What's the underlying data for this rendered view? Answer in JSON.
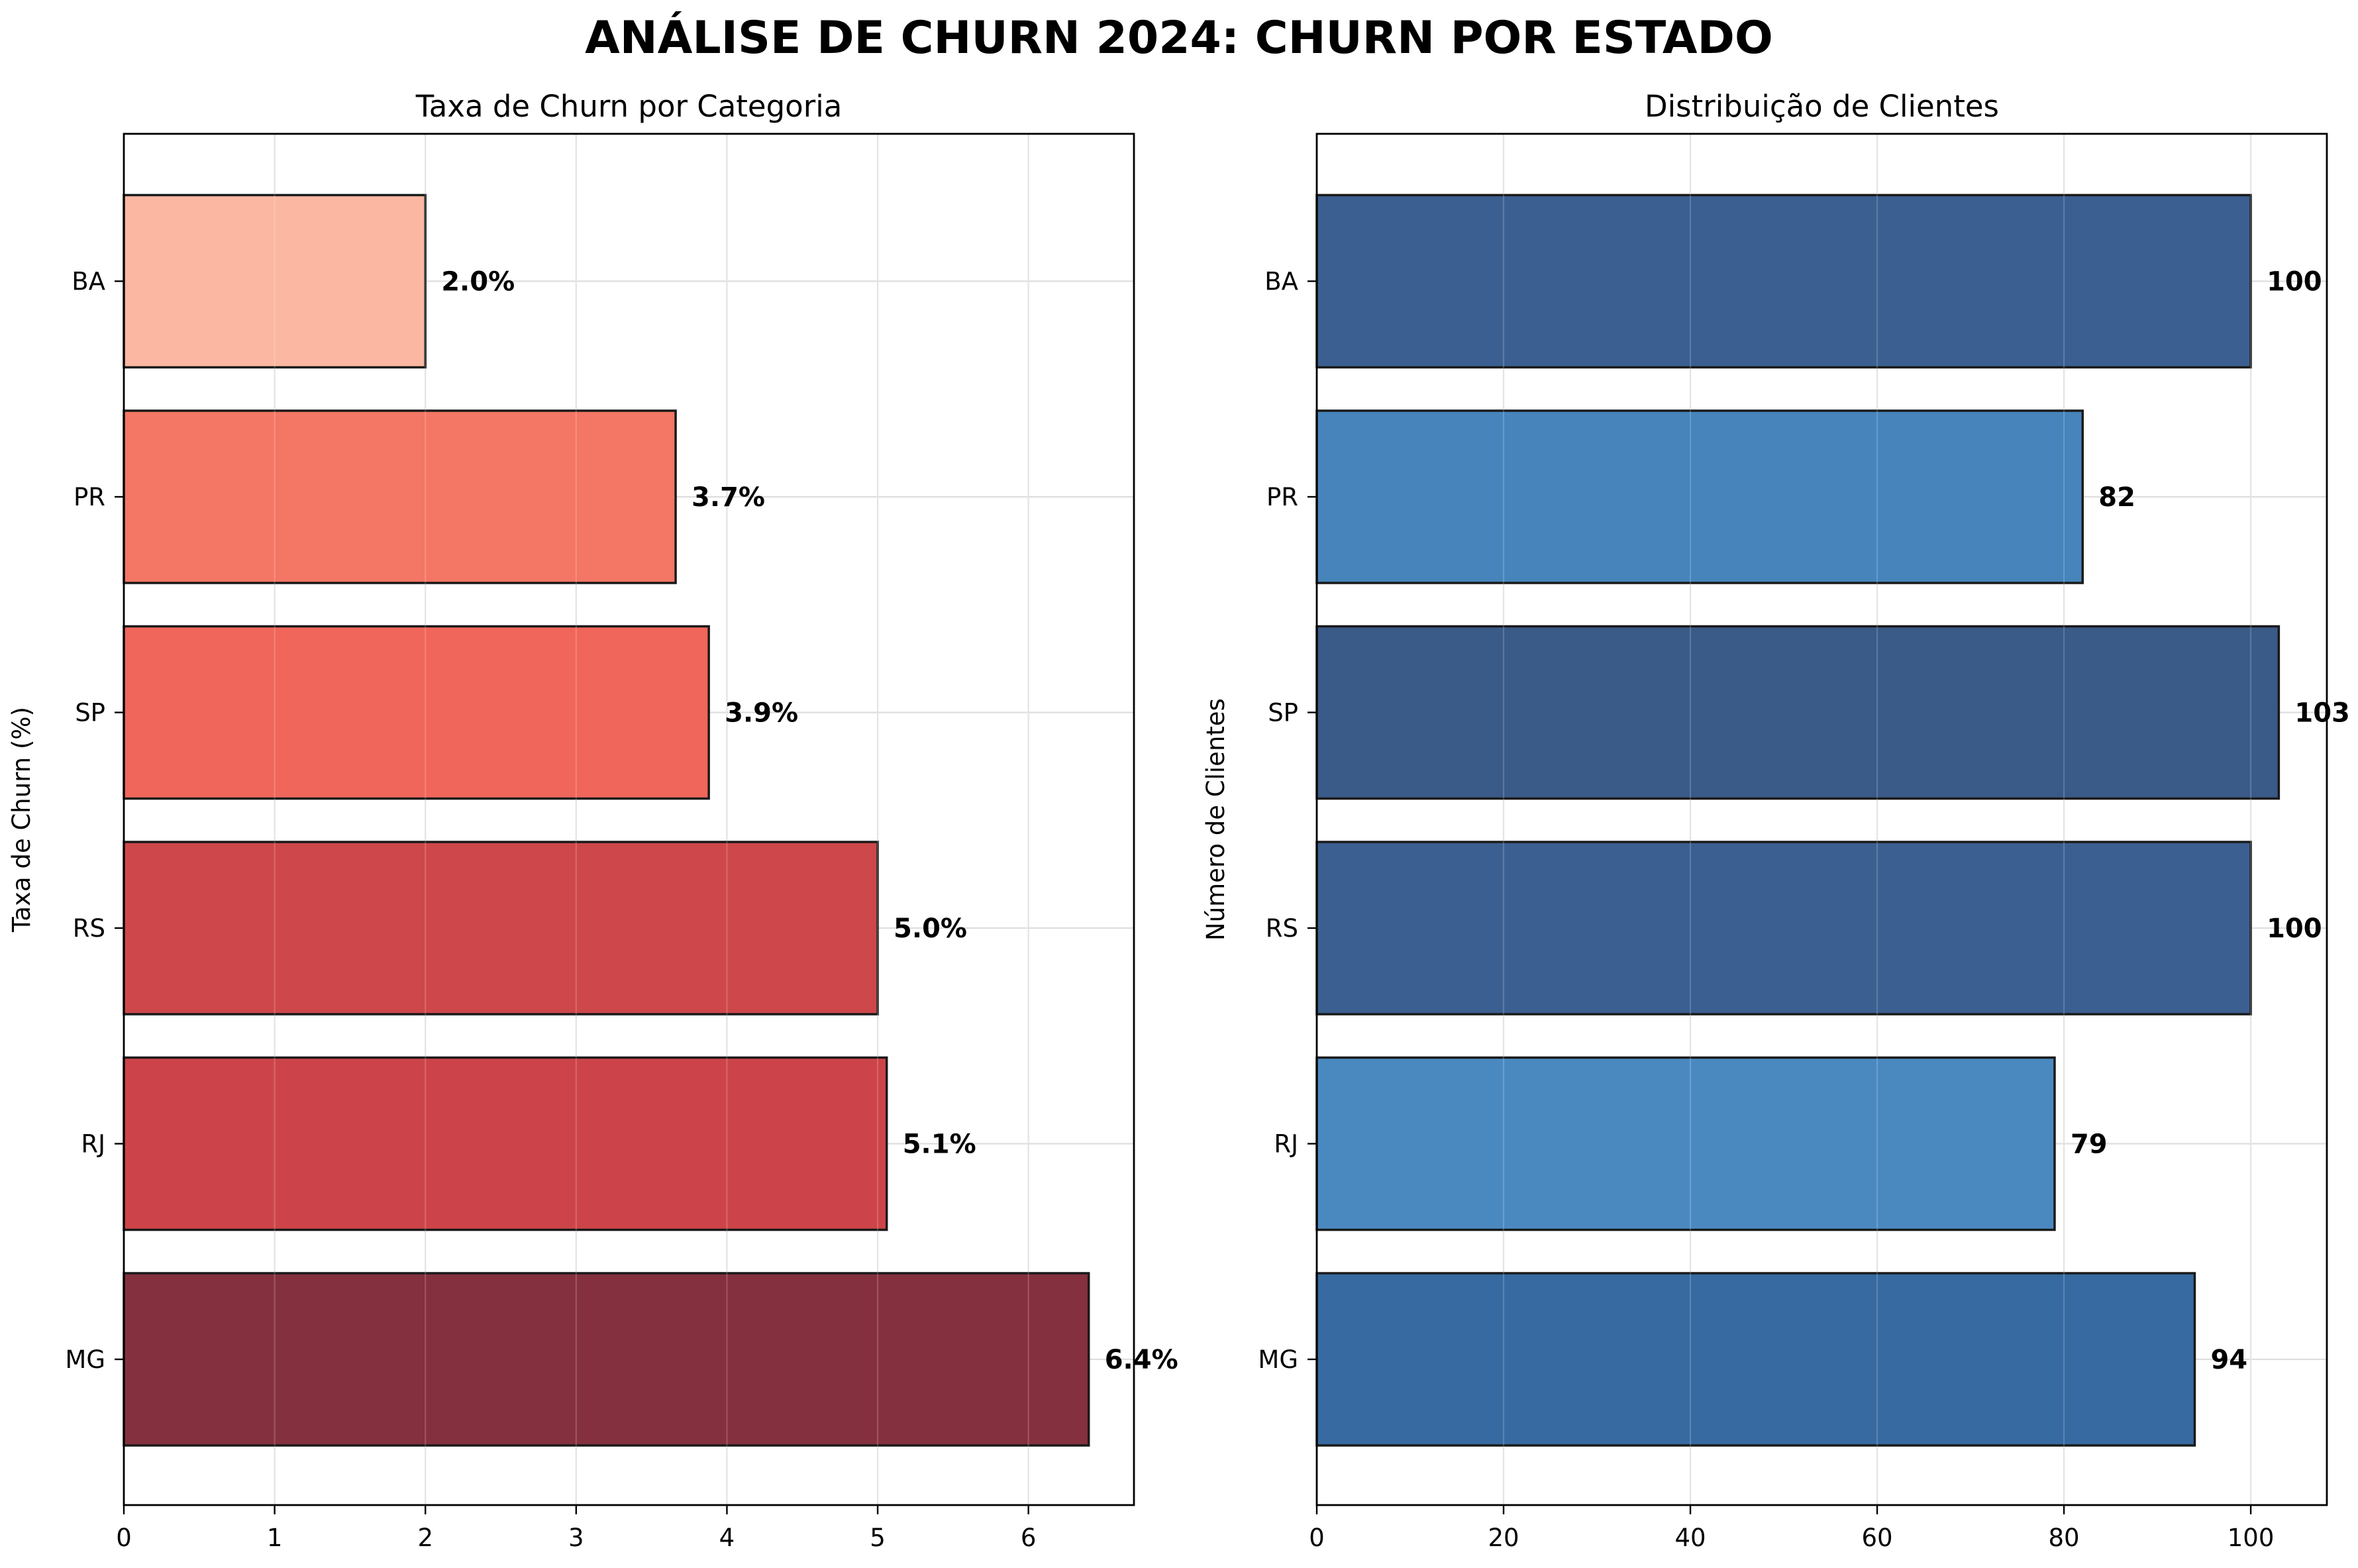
{
  "suptitle": "ANÁLISE DE CHURN 2024: CHURN POR ESTADO",
  "chart_data": [
    {
      "type": "bar",
      "orientation": "horizontal",
      "title": "Taxa de Churn por Categoria",
      "xlabel": "",
      "ylabel": "Taxa de Churn (%)",
      "categories": [
        "MG",
        "RJ",
        "RS",
        "SP",
        "PR",
        "BA"
      ],
      "values": [
        6.4,
        5.06,
        5.0,
        3.88,
        3.66,
        2.0
      ],
      "value_labels": [
        "6.4%",
        "5.1%",
        "5.0%",
        "3.9%",
        "3.7%",
        "2.0%"
      ],
      "colors": [
        "#85303e",
        "#cc4449",
        "#ce474a",
        "#f0665b",
        "#f47665",
        "#fbb7a2"
      ],
      "xlim": [
        0,
        6.7
      ],
      "xticks": [
        0,
        1,
        2,
        3,
        4,
        5,
        6
      ],
      "grid": true
    },
    {
      "type": "bar",
      "orientation": "horizontal",
      "title": "Distribuição de Clientes",
      "xlabel": "",
      "ylabel": "Número de Clientes",
      "categories": [
        "MG",
        "RJ",
        "RS",
        "SP",
        "PR",
        "BA"
      ],
      "values": [
        94,
        79,
        100,
        103,
        82,
        100
      ],
      "value_labels": [
        "94",
        "79",
        "100",
        "103",
        "82",
        "100"
      ],
      "colors": [
        "#376aa0",
        "#4a89c0",
        "#3b5f90",
        "#3a5a87",
        "#4684bb",
        "#3b5f90"
      ],
      "xlim": [
        0,
        108.15
      ],
      "xticks": [
        0,
        20,
        40,
        60,
        80,
        100
      ],
      "grid": true
    }
  ]
}
